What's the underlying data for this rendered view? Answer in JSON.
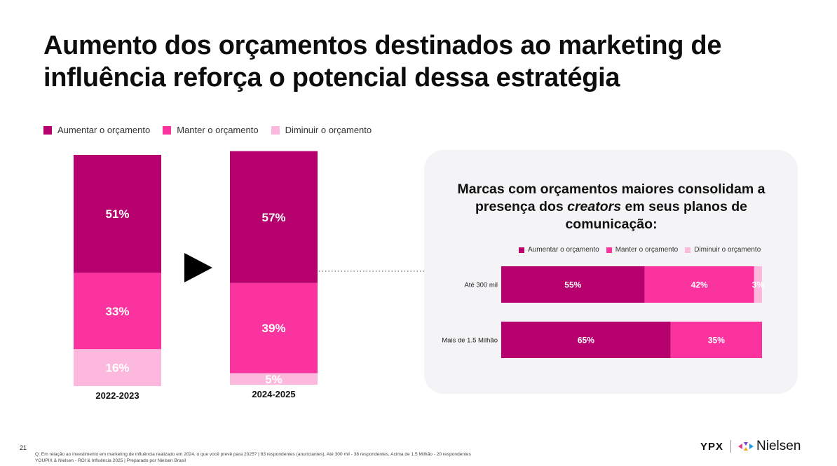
{
  "title_line1": "Aumento dos orçamentos destinados ao marketing de",
  "title_line2": "influência reforça o potencial dessa estratégia",
  "colors": {
    "aumentar": "#b5006e",
    "manter": "#fa339f",
    "diminuir": "#fcb8dd"
  },
  "legend": [
    "Aumentar o orçamento",
    "Manter o orçamento",
    "Diminuir o orçamento"
  ],
  "panel": {
    "title_part1": "Marcas com orçamentos maiores consolidam a",
    "title_part2_pre": "presença dos ",
    "title_part2_em": "creators",
    "title_part2_post": " em seus planos de",
    "title_part3": "comunicação:"
  },
  "chart_data": [
    {
      "type": "bar",
      "stacked": true,
      "categories": [
        "2022-2023",
        "2024-2025"
      ],
      "series": [
        {
          "name": "Aumentar o orçamento",
          "values": [
            51,
            57
          ],
          "labels": [
            "51%",
            "57%"
          ]
        },
        {
          "name": "Manter o orçamento",
          "values": [
            33,
            39
          ],
          "labels": [
            "33%",
            "39%"
          ]
        },
        {
          "name": "Diminuir o orçamento",
          "values": [
            16,
            5
          ],
          "labels": [
            "16%",
            "5%"
          ]
        }
      ],
      "legend_position": "top-left"
    },
    {
      "type": "bar",
      "orientation": "horizontal",
      "stacked": true,
      "title": "Marcas com orçamentos maiores consolidam a presença dos creators em seus planos de comunicação:",
      "categories": [
        "Até 300 mil",
        "Mais de 1.5 Milhão"
      ],
      "series": [
        {
          "name": "Aumentar o orçamento",
          "values": [
            55,
            65
          ],
          "labels": [
            "55%",
            "65%"
          ]
        },
        {
          "name": "Manter o orçamento",
          "values": [
            42,
            35
          ],
          "labels": [
            "42%",
            "35%"
          ]
        },
        {
          "name": "Diminuir o orçamento",
          "values": [
            3,
            0
          ],
          "labels": [
            "3%",
            ""
          ]
        }
      ],
      "legend_position": "top"
    }
  ],
  "footer": {
    "page_number": "21",
    "note1": "Q. Em relação ao investimento em marketing de influência realizado em 2024, o que você prevê para 2025? | 83 respondentes (anunciantes), Até 300 mil - 38 respondentes, Acima de 1.5 Milhão - 20 respondentes",
    "note2": "YOUPIX & Nielsen  - ROI & Influência 2025 | Preparado por Nielsen Brasil",
    "logo_ypx": "YPX",
    "logo_nielsen": "Nielsen"
  }
}
